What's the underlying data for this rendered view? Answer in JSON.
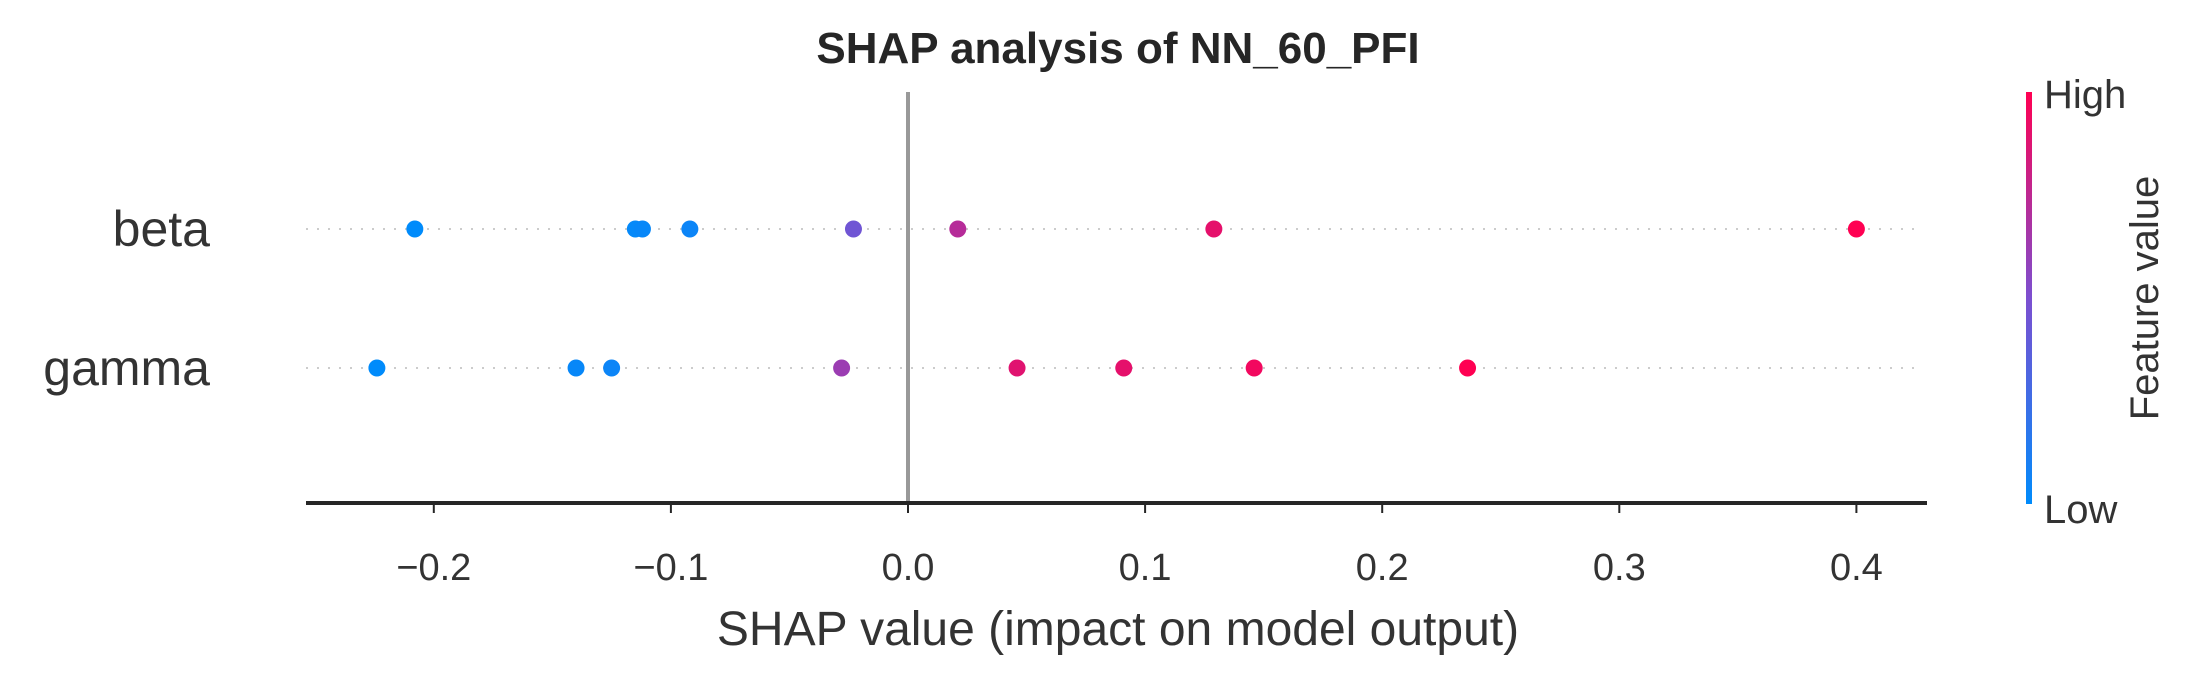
{
  "chart_data": {
    "type": "scatter",
    "title": "SHAP analysis of NN_60_PFI",
    "xlabel": "SHAP value (impact on model output)",
    "xlim": [
      -0.26,
      0.43
    ],
    "xticks": [
      -0.2,
      -0.1,
      0.0,
      0.1,
      0.2,
      0.3,
      0.4
    ],
    "xtick_labels": [
      "−0.2",
      "−0.1",
      "0.0",
      "0.1",
      "0.2",
      "0.3",
      "0.4"
    ],
    "features": [
      {
        "name": "beta",
        "points": [
          {
            "x": -0.208,
            "v": 0.0
          },
          {
            "x": -0.115,
            "v": 0.02
          },
          {
            "x": -0.112,
            "v": 0.03
          },
          {
            "x": -0.092,
            "v": 0.05
          },
          {
            "x": -0.023,
            "v": 0.45
          },
          {
            "x": 0.021,
            "v": 0.72
          },
          {
            "x": 0.129,
            "v": 0.9
          },
          {
            "x": 0.4,
            "v": 1.0
          }
        ]
      },
      {
        "name": "gamma",
        "points": [
          {
            "x": -0.224,
            "v": 0.0
          },
          {
            "x": -0.14,
            "v": 0.03
          },
          {
            "x": -0.125,
            "v": 0.05
          },
          {
            "x": -0.028,
            "v": 0.62
          },
          {
            "x": 0.046,
            "v": 0.88
          },
          {
            "x": 0.091,
            "v": 0.9
          },
          {
            "x": 0.146,
            "v": 0.95
          },
          {
            "x": 0.236,
            "v": 1.0
          }
        ]
      }
    ],
    "colorbar": {
      "label": "Feature value",
      "high_label": "High",
      "low_label": "Low",
      "low_color": "#008bfb",
      "mid_color": "#7c4fd0",
      "high_color": "#ff0052"
    },
    "zero_line": true,
    "grid": false
  }
}
